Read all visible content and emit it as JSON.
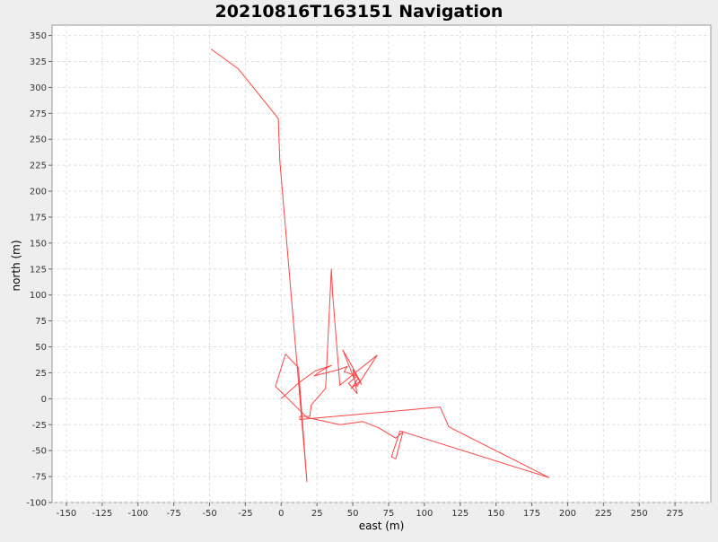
{
  "chart_data": {
    "type": "line",
    "title": "20210816T163151 Navigation",
    "xlabel": "east (m)",
    "ylabel": "north (m)",
    "xlim": [
      -160,
      300
    ],
    "ylim": [
      -100,
      360
    ],
    "x_ticks": [
      -150,
      -125,
      -100,
      -75,
      -50,
      -25,
      0,
      25,
      50,
      75,
      100,
      125,
      150,
      175,
      200,
      225,
      250,
      275
    ],
    "y_ticks": [
      -100,
      -75,
      -50,
      -25,
      0,
      25,
      50,
      75,
      100,
      125,
      150,
      175,
      200,
      225,
      250,
      275,
      300,
      325,
      350
    ],
    "grid": true,
    "series": [
      {
        "color": "#ff4444",
        "points": [
          [
            -49,
            337
          ],
          [
            -30,
            318
          ],
          [
            -2,
            270
          ],
          [
            -1,
            230
          ],
          [
            18,
            -80
          ],
          [
            12,
            30
          ],
          [
            3,
            43
          ],
          [
            -4,
            12
          ],
          [
            18,
            -18
          ],
          [
            41,
            -25
          ],
          [
            57,
            -22
          ],
          [
            68,
            -28
          ],
          [
            80,
            -38
          ],
          [
            85,
            -32
          ],
          [
            80,
            -58
          ],
          [
            77,
            -56
          ],
          [
            83,
            -31
          ],
          [
            187,
            -76
          ],
          [
            117,
            -27
          ],
          [
            111,
            -8
          ],
          [
            13,
            -20
          ],
          [
            13,
            -17
          ],
          [
            20,
            -17
          ],
          [
            21,
            -6
          ],
          [
            31,
            10
          ],
          [
            35,
            125
          ],
          [
            36,
            100
          ],
          [
            41,
            13
          ],
          [
            49,
            22
          ],
          [
            67,
            42
          ],
          [
            53,
            12
          ],
          [
            43,
            47
          ],
          [
            48,
            35
          ],
          [
            55,
            17
          ],
          [
            49,
            10
          ],
          [
            54,
            20
          ],
          [
            56,
            14
          ],
          [
            50,
            28
          ],
          [
            53,
            5
          ],
          [
            47,
            15
          ],
          [
            53,
            22
          ],
          [
            44,
            26
          ],
          [
            46,
            31
          ],
          [
            40,
            28
          ],
          [
            23,
            22
          ],
          [
            28,
            27
          ],
          [
            35,
            32
          ],
          [
            24,
            27
          ],
          [
            13,
            16
          ],
          [
            0,
            0
          ]
        ]
      }
    ]
  }
}
